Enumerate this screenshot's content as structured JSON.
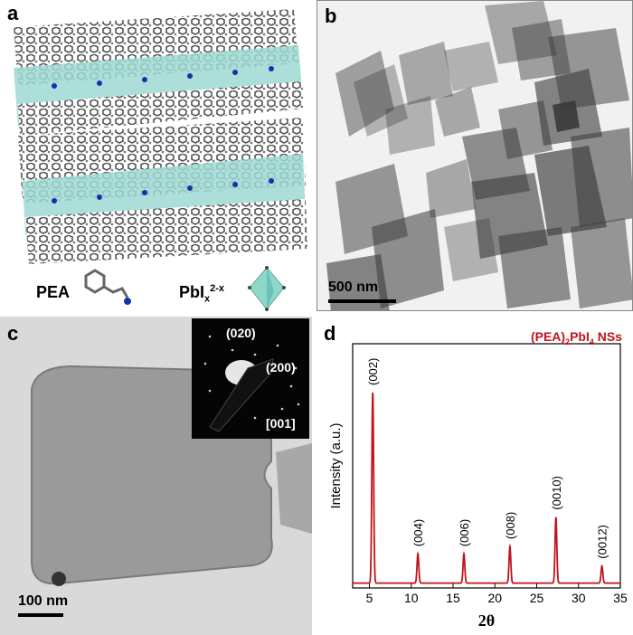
{
  "panels": {
    "a": {
      "label": "a",
      "legend_pea": "PEA",
      "legend_pbi_base": "PbI",
      "legend_pbi_sub": "x",
      "legend_pbi_sup": "2-x"
    },
    "b": {
      "label": "b",
      "scale_bar": "500 nm"
    },
    "c": {
      "label": "c",
      "scale_bar": "100 nm",
      "saed_spots": [
        "(020)",
        "(200)",
        "[001]"
      ]
    },
    "d": {
      "label": "d",
      "title_base": "(PEA)",
      "title_sub1": "2",
      "title_mid": "PbI",
      "title_sub2": "4",
      "title_end": " NSs"
    }
  },
  "chart_data": {
    "type": "line",
    "title": "(PEA)2PbI4 NSs",
    "xlabel": "2θ",
    "ylabel": "Intensity (a.u.)",
    "xlim": [
      3,
      35
    ],
    "xticks": [
      5,
      10,
      15,
      20,
      25,
      30,
      35
    ],
    "line_color": "#c0141c",
    "peaks": [
      {
        "x": 5.4,
        "height": 0.78,
        "label": "(002)"
      },
      {
        "x": 10.8,
        "height": 0.12,
        "label": "(004)"
      },
      {
        "x": 16.3,
        "height": 0.12,
        "label": "(006)"
      },
      {
        "x": 21.8,
        "height": 0.15,
        "label": "(008)"
      },
      {
        "x": 27.3,
        "height": 0.27,
        "label": "(0010)"
      },
      {
        "x": 32.8,
        "height": 0.07,
        "label": "(0012)"
      }
    ],
    "baseline": 0.02,
    "grid": false
  }
}
